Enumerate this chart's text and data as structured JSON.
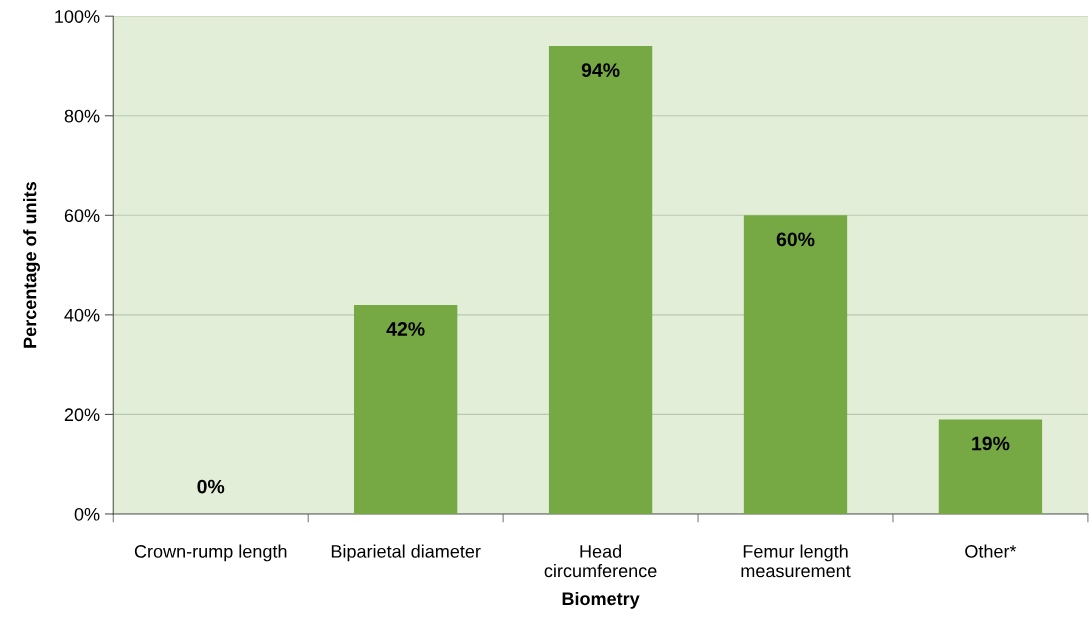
{
  "chart_data": {
    "type": "bar",
    "xlabel": "Biometry",
    "ylabel": "Percentage of units",
    "categories": [
      "Crown-rump length",
      "Biparietal diameter",
      "Head\ncircumference",
      "Femur length\nmeasurement",
      "Other*"
    ],
    "values": [
      0,
      42,
      94,
      60,
      19
    ],
    "color": "#76a843",
    "value_labels": [
      "0%",
      "42%",
      "94%",
      "60%",
      "19%"
    ],
    "ylim": [
      0,
      100
    ],
    "yticks": [
      {
        "value": 0,
        "label": "0%"
      },
      {
        "value": 20,
        "label": "20%"
      },
      {
        "value": 40,
        "label": "40%"
      },
      {
        "value": 60,
        "label": "60%"
      },
      {
        "value": 80,
        "label": "80%"
      },
      {
        "value": 100,
        "label": "100%"
      }
    ],
    "grid": "y",
    "legend": false
  }
}
